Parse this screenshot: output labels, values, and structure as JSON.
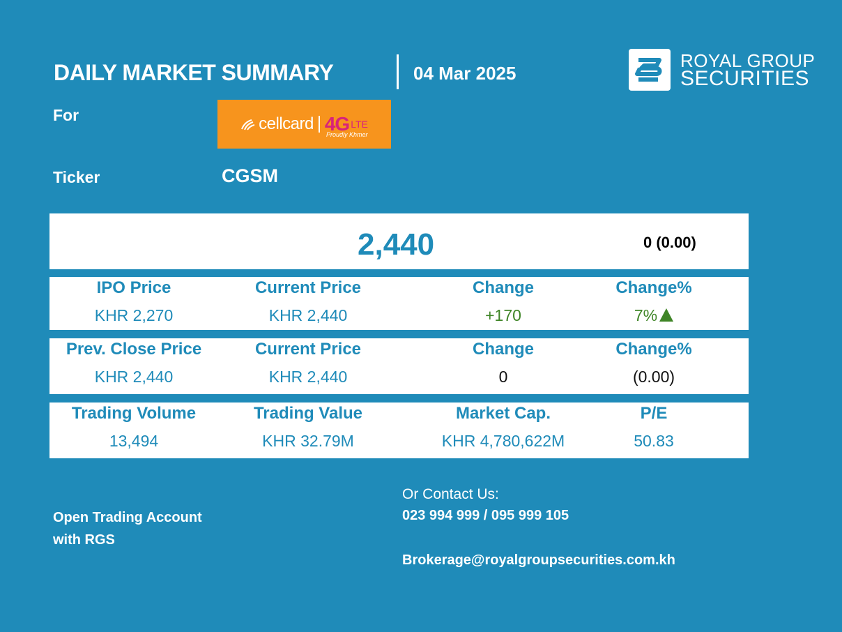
{
  "header": {
    "title": "DAILY MARKET SUMMARY",
    "date": "04 Mar 2025",
    "brand_line1": "ROYAL GROUP",
    "brand_line2": "SECURITIES"
  },
  "company": {
    "for_label": "For",
    "logo_name": "cellcard",
    "logo_4g": "4G",
    "logo_lte": "LTE",
    "logo_tagline": "Proudly Khmer",
    "ticker_label": "Ticker",
    "ticker": "CGSM"
  },
  "price": {
    "current": "2,440",
    "change_text": "0  (0.00)"
  },
  "table1": {
    "headers": [
      "IPO Price",
      "Current Price",
      "Change",
      "Change%"
    ],
    "values": [
      "KHR 2,270",
      "KHR 2,440",
      "+170",
      "7%"
    ]
  },
  "table2": {
    "headers": [
      "Prev. Close Price",
      "Current Price",
      "Change",
      "Change%"
    ],
    "values": [
      "KHR 2,440",
      "KHR 2,440",
      "0",
      "(0.00)"
    ]
  },
  "table3": {
    "headers": [
      "Trading Volume",
      "Trading Value",
      "Market Cap.",
      "P/E"
    ],
    "values": [
      "13,494",
      "KHR 32.79M",
      "KHR 4,780,622M",
      "50.83"
    ]
  },
  "footer": {
    "open_line1": "Open Trading Account",
    "open_line2": "with RGS",
    "contact_heading": "Or Contact Us:",
    "phones": "023 994 999 / 095 999 105",
    "email": "Brokerage@royalgroupsecurities.com.kh"
  },
  "colors": {
    "background": "#1f8bb9",
    "positive": "#3f8527",
    "logo_orange": "#f7941d",
    "logo_magenta": "#d8237a"
  }
}
